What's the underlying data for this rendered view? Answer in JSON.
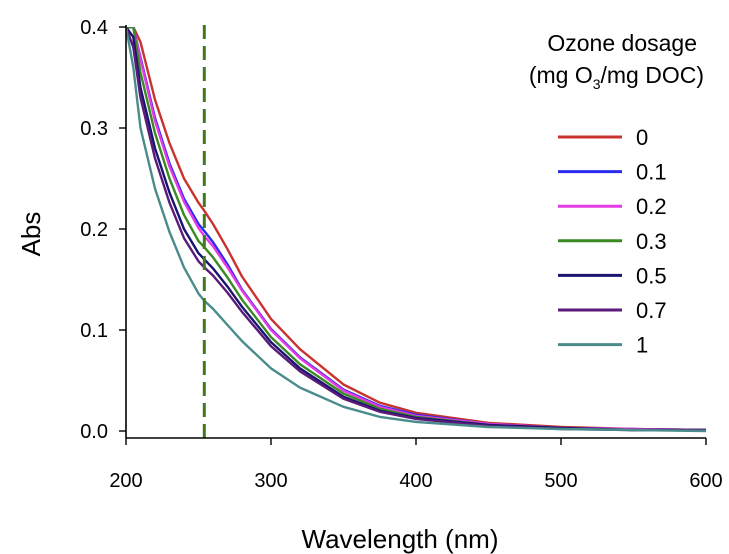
{
  "chart_data": {
    "type": "line",
    "xlabel": "Wavelength (nm)",
    "ylabel": "Abs",
    "xlim": [
      200,
      600
    ],
    "ylim": [
      0.0,
      0.4
    ],
    "x_ticks": [
      "200",
      "300",
      "400",
      "500",
      "600"
    ],
    "y_ticks": [
      "0.0",
      "0.1",
      "0.2",
      "0.3",
      "0.4"
    ],
    "grid": false,
    "legend": {
      "title_line1": "Ozone dosage",
      "title_line2_prefix": "(mg O",
      "title_line2_sub": "3",
      "title_line2_suffix": "/mg DOC)",
      "placement": "top-right"
    },
    "reference_line": {
      "x": 254,
      "color": "#3f7a1f",
      "style": "dashed"
    },
    "x": [
      200,
      205,
      210,
      220,
      230,
      240,
      250,
      254,
      260,
      270,
      280,
      300,
      320,
      350,
      375,
      400,
      450,
      500,
      550,
      600
    ],
    "series": [
      {
        "name": "0",
        "color": "#c8322f",
        "values": [
          0.4,
          0.4,
          0.385,
          0.328,
          0.285,
          0.25,
          0.226,
          0.218,
          0.205,
          0.18,
          0.153,
          0.111,
          0.081,
          0.046,
          0.028,
          0.018,
          0.008,
          0.004,
          0.002,
          0.001
        ]
      },
      {
        "name": "0.1",
        "color": "#2b2bf0",
        "values": [
          0.4,
          0.4,
          0.37,
          0.31,
          0.265,
          0.23,
          0.205,
          0.198,
          0.187,
          0.165,
          0.14,
          0.101,
          0.073,
          0.041,
          0.025,
          0.016,
          0.007,
          0.003,
          0.002,
          0.001
        ]
      },
      {
        "name": "0.2",
        "color": "#e43be4",
        "values": [
          0.4,
          0.4,
          0.368,
          0.307,
          0.262,
          0.227,
          0.201,
          0.193,
          0.183,
          0.162,
          0.139,
          0.1,
          0.072,
          0.04,
          0.024,
          0.015,
          0.007,
          0.003,
          0.002,
          0.001
        ]
      },
      {
        "name": "0.3",
        "color": "#3a8a22",
        "values": [
          0.4,
          0.4,
          0.355,
          0.295,
          0.25,
          0.214,
          0.188,
          0.182,
          0.172,
          0.152,
          0.13,
          0.093,
          0.066,
          0.037,
          0.022,
          0.014,
          0.006,
          0.003,
          0.001,
          0.001
        ]
      },
      {
        "name": "0.5",
        "color": "#1a1470",
        "values": [
          0.4,
          0.39,
          0.34,
          0.28,
          0.236,
          0.2,
          0.176,
          0.17,
          0.161,
          0.143,
          0.123,
          0.088,
          0.062,
          0.034,
          0.02,
          0.013,
          0.006,
          0.003,
          0.001,
          0.001
        ]
      },
      {
        "name": "0.7",
        "color": "#5a1a7a",
        "values": [
          0.4,
          0.38,
          0.33,
          0.27,
          0.226,
          0.191,
          0.168,
          0.162,
          0.154,
          0.137,
          0.118,
          0.084,
          0.059,
          0.032,
          0.019,
          0.012,
          0.005,
          0.002,
          0.001,
          0.001
        ]
      },
      {
        "name": "1",
        "color": "#4a8c8c",
        "values": [
          0.4,
          0.36,
          0.3,
          0.24,
          0.197,
          0.162,
          0.136,
          0.129,
          0.121,
          0.105,
          0.089,
          0.062,
          0.043,
          0.024,
          0.014,
          0.009,
          0.004,
          0.002,
          0.001,
          0.0
        ]
      }
    ]
  }
}
